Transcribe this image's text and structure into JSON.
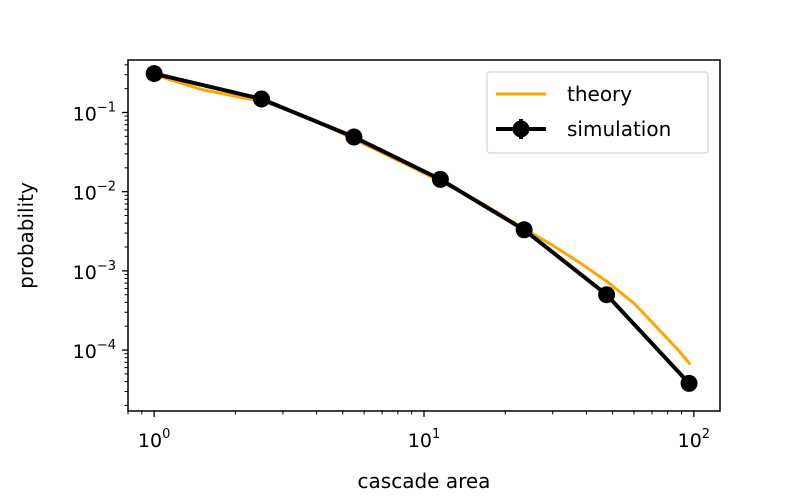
{
  "chart_data": {
    "type": "line",
    "xscale": "log",
    "yscale": "log",
    "xlabel": "cascade area",
    "ylabel": "probability",
    "xlim": [
      0.8,
      125
    ],
    "ylim": [
      1.7e-05,
      0.46
    ],
    "x_ticks": [
      {
        "value": 1,
        "base": "10",
        "exp": "0"
      },
      {
        "value": 10,
        "base": "10",
        "exp": "1"
      },
      {
        "value": 100,
        "base": "10",
        "exp": "2"
      }
    ],
    "y_ticks": [
      {
        "value": 0.1,
        "base": "10",
        "exp": "−1"
      },
      {
        "value": 0.01,
        "base": "10",
        "exp": "−2"
      },
      {
        "value": 0.001,
        "base": "10",
        "exp": "−3"
      },
      {
        "value": 0.0001,
        "base": "10",
        "exp": "−4"
      }
    ],
    "legend_position": "top-right",
    "series": [
      {
        "name": "theory",
        "color": "#ffa500",
        "x": [
          1,
          1.5,
          2,
          2.5,
          3,
          4,
          5.5,
          7,
          9,
          11.5,
          15,
          19,
          23.5,
          30,
          38,
          47.5,
          60,
          75,
          88,
          97
        ],
        "y": [
          0.3,
          0.195,
          0.16,
          0.138,
          0.115,
          0.078,
          0.046,
          0.031,
          0.0205,
          0.0135,
          0.0085,
          0.0053,
          0.0034,
          0.0021,
          0.00125,
          0.00074,
          0.00039,
          0.000175,
          9.8e-05,
          6.6e-05
        ]
      },
      {
        "name": "simulation",
        "color": "#000000",
        "x": [
          1,
          2.5,
          5.5,
          11.5,
          23.5,
          47.5,
          96
        ],
        "y": [
          0.31,
          0.148,
          0.049,
          0.0143,
          0.0033,
          0.0005,
          3.8e-05
        ]
      }
    ]
  }
}
